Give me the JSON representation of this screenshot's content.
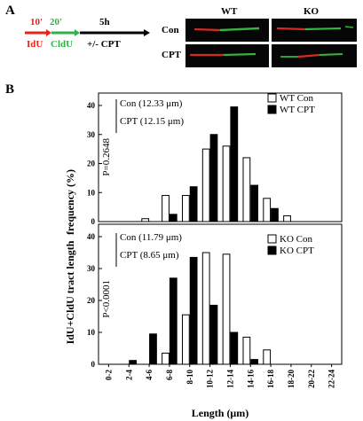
{
  "panel_a": {
    "letter": "A",
    "pulse1_time": "10'",
    "pulse1_label": "IdU",
    "pulse2_time": "20'",
    "pulse2_label": "CldU",
    "chase_time": "5h",
    "chase_label": "+/- CPT",
    "col_wt": "WT",
    "col_ko": "KO",
    "row_con": "Con",
    "row_cpt": "CPT",
    "colors": {
      "idu": "#e8231e",
      "cldu": "#2fb24a",
      "arrow": "#000000"
    }
  },
  "panel_b": {
    "letter": "B",
    "ylabel_top": "frequency  (%)",
    "ylabel_main": "IdU+CldU tract length",
    "xlabel": "Length (μm)"
  },
  "chart_data": [
    {
      "type": "bar",
      "categories": [
        "0-2",
        "2-4",
        "4-6",
        "6-8",
        "8-10",
        "10-12",
        "12-14",
        "14-16",
        "16-18",
        "18-20",
        "20-22",
        "22-24"
      ],
      "ylim": [
        0,
        40
      ],
      "yticks": [
        0,
        10,
        20,
        30,
        40
      ],
      "pvalue": "P=0.2648",
      "annotations": [
        "Con  (12.33 μm)",
        "CPT  (12.15 μm)"
      ],
      "legend_position": "top-right",
      "series": [
        {
          "name": "WT Con",
          "fill": "#ffffff",
          "values": [
            0,
            0,
            1,
            9,
            9,
            25,
            26,
            22,
            8,
            2,
            0,
            0
          ]
        },
        {
          "name": "WT CPT",
          "fill": "#000000",
          "values": [
            0,
            0,
            0,
            2.5,
            12,
            30,
            39.5,
            12.5,
            4.5,
            0,
            0,
            0
          ]
        }
      ]
    },
    {
      "type": "bar",
      "categories": [
        "0-2",
        "2-4",
        "4-6",
        "6-8",
        "8-10",
        "10-12",
        "12-14",
        "14-16",
        "16-18",
        "18-20",
        "20-22",
        "22-24"
      ],
      "ylim": [
        0,
        40
      ],
      "yticks": [
        0,
        10,
        20,
        30,
        40
      ],
      "pvalue": "P<0.0001",
      "annotations": [
        "Con (11.79 μm)",
        "CPT (8.65 μm)"
      ],
      "legend_position": "top-right",
      "series": [
        {
          "name": "KO Con",
          "fill": "#ffffff",
          "values": [
            0,
            0,
            0,
            3.5,
            15.5,
            35,
            34.5,
            8.5,
            4.5,
            0,
            0,
            0
          ]
        },
        {
          "name": "KO CPT",
          "fill": "#000000",
          "values": [
            0,
            1.2,
            9.5,
            27,
            33.5,
            18.5,
            10,
            1.5,
            0,
            0,
            0,
            0
          ]
        }
      ]
    }
  ]
}
